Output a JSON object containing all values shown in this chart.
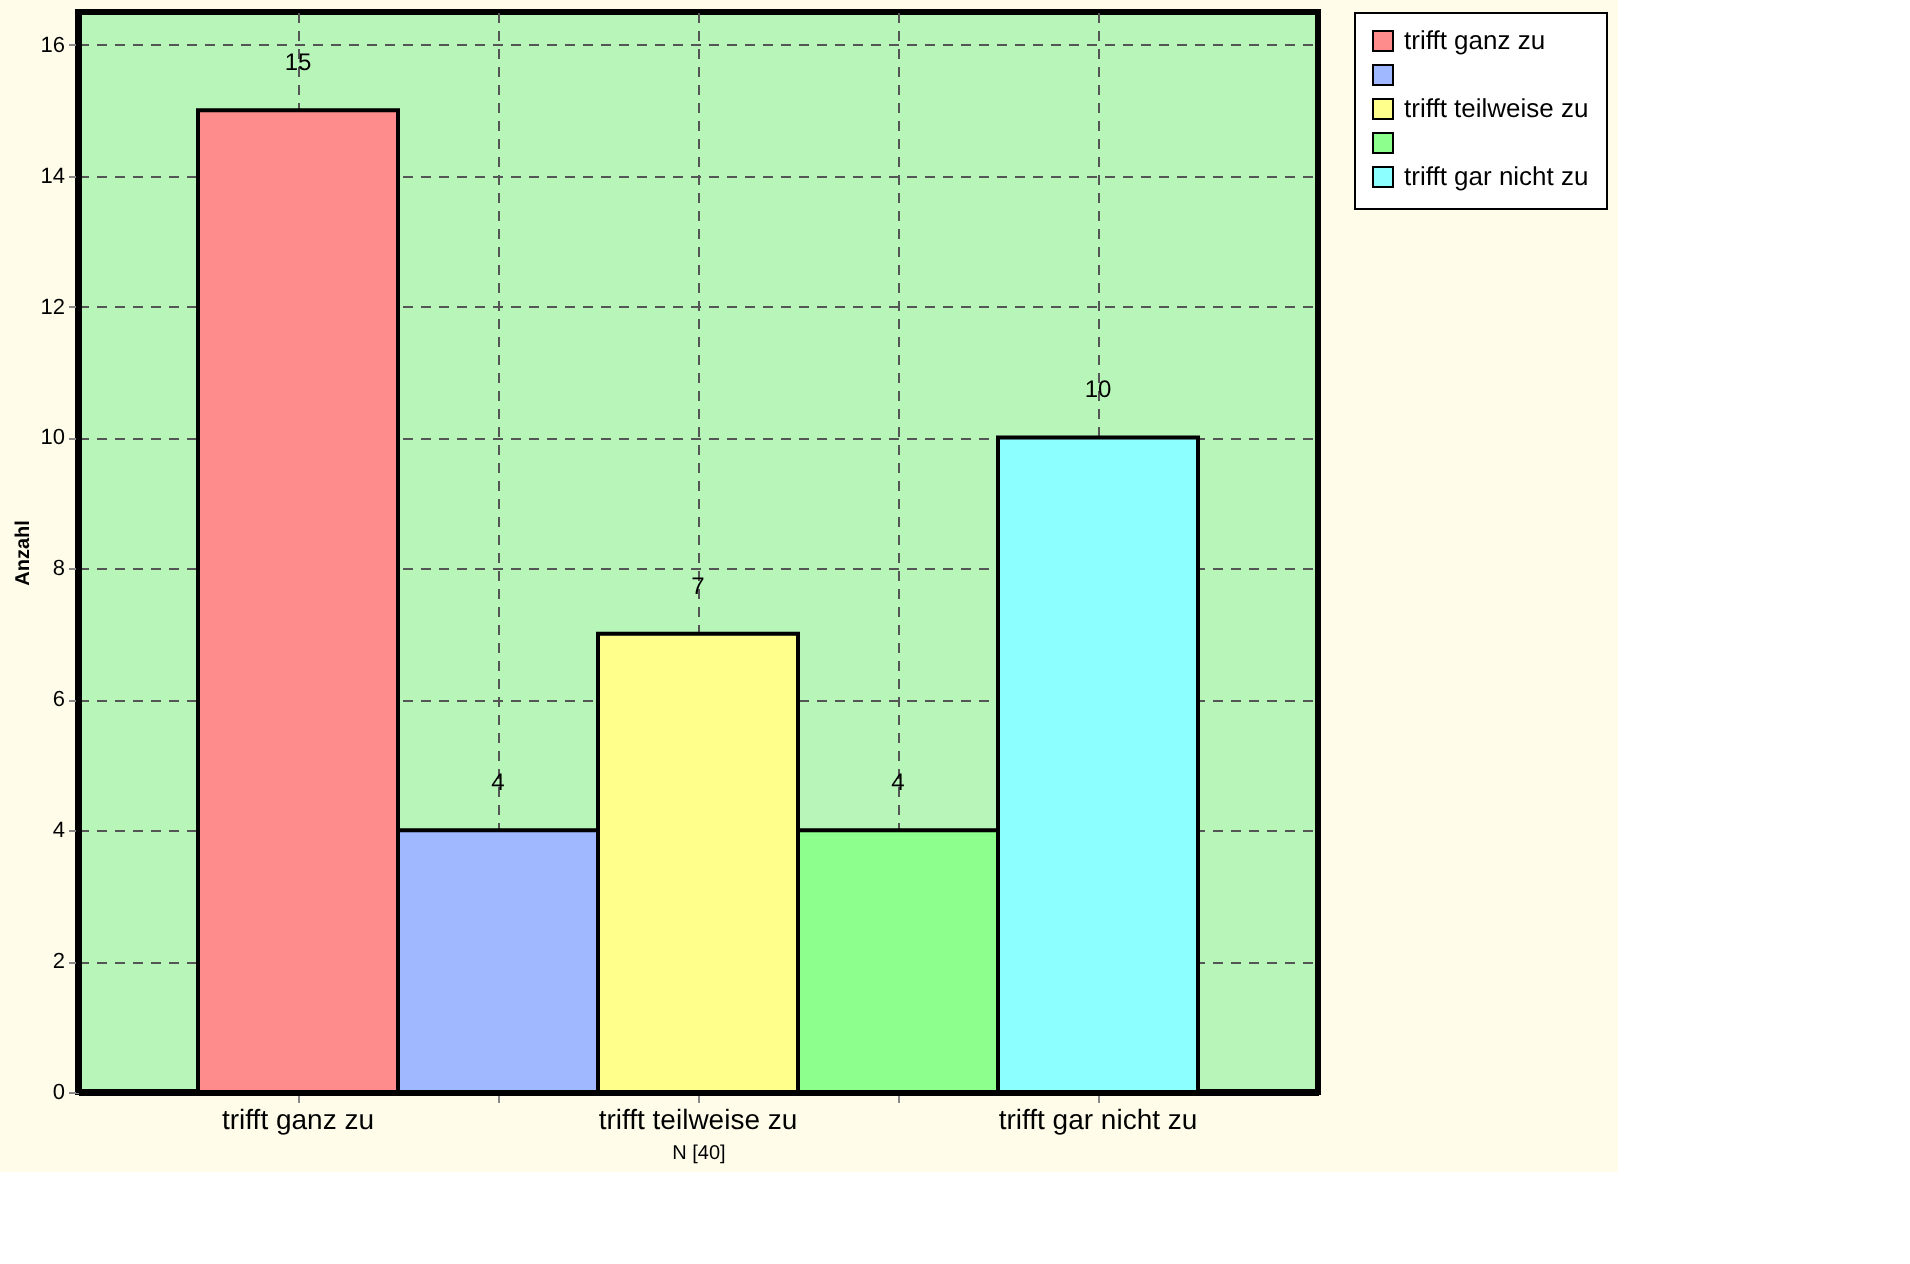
{
  "chart_data": {
    "type": "bar",
    "categories": [
      "trifft ganz zu",
      null,
      "trifft teilweise zu",
      null,
      "trifft gar nicht zu"
    ],
    "series": [
      {
        "name": "trifft ganz zu",
        "color": "#ff8c8c",
        "values": [
          15,
          null,
          null,
          null,
          null
        ]
      },
      {
        "color": "#a0b8ff",
        "values": [
          null,
          4,
          null,
          null,
          null
        ]
      },
      {
        "name": "trifft teilweise zu",
        "color": "#ffff8c",
        "values": [
          null,
          null,
          7,
          null,
          null
        ]
      },
      {
        "color": "#8cff8c",
        "values": [
          null,
          null,
          null,
          4,
          null
        ]
      },
      {
        "name": "trifft gar nicht zu",
        "color": "#8cffff",
        "values": [
          null,
          null,
          null,
          null,
          10
        ]
      }
    ],
    "ylabel": "Anzahl",
    "xlabel": "N [40]",
    "ylim": [
      0,
      16.5
    ],
    "yticks": [
      0,
      2,
      4,
      6,
      8,
      10,
      12,
      14,
      16
    ],
    "grid": true,
    "legend": "right",
    "data_labels": true
  }
}
